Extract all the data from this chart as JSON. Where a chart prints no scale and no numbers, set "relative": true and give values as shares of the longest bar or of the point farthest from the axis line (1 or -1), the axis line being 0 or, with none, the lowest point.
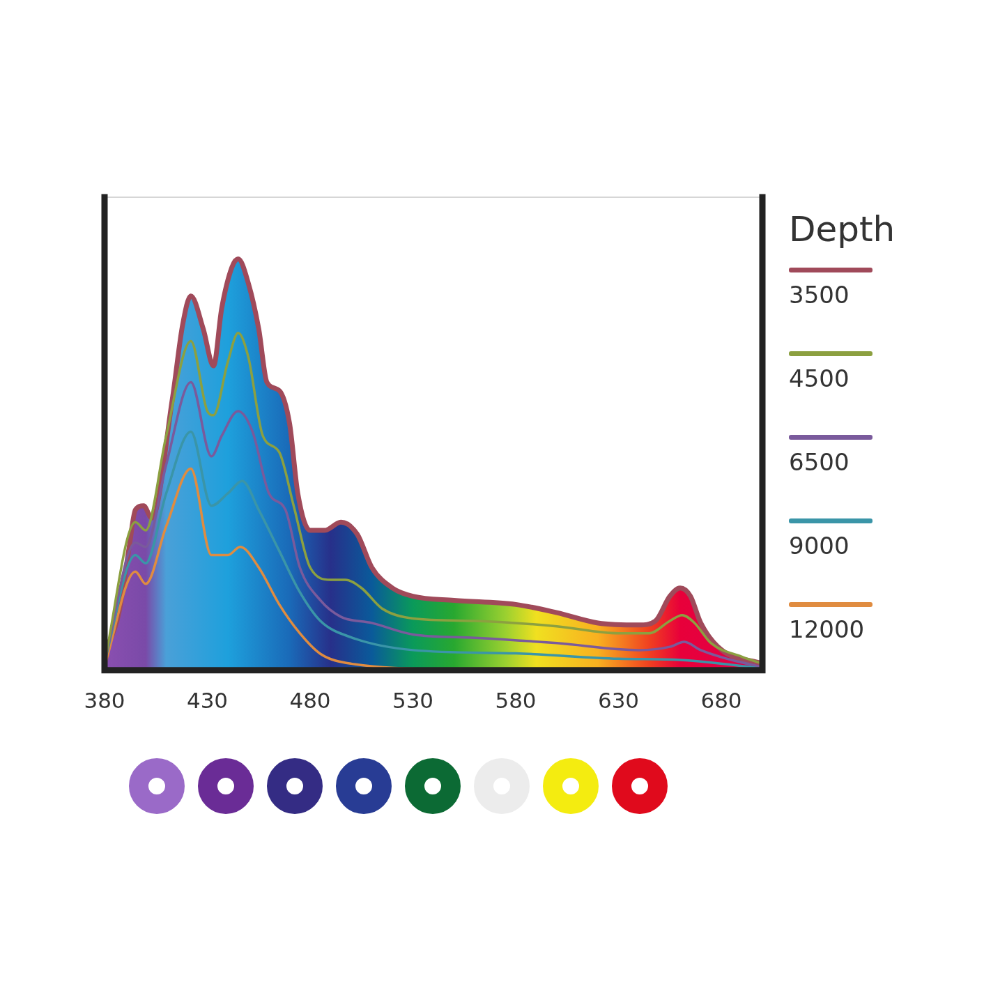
{
  "chart_data": {
    "type": "line",
    "relative": true,
    "legend_title": "Depth",
    "legend": "right",
    "tick_labels": "x",
    "grid": false,
    "marker": "none",
    "xlim": [
      380,
      700
    ],
    "xticks": [
      380,
      430,
      480,
      530,
      580,
      630,
      680
    ],
    "series": [
      {
        "name": "3500",
        "type": "area",
        "color": "#a04a5a",
        "x": [
          380,
          387,
          392,
          395,
          399,
          403,
          413,
          418,
          422,
          428,
          433,
          437,
          442,
          445,
          450,
          455,
          459,
          465,
          470,
          474,
          480,
          487,
          495,
          503,
          510,
          520,
          530,
          550,
          580,
          600,
          620,
          640,
          648,
          655,
          660,
          665,
          670,
          680,
          700
        ],
        "values": [
          0.04,
          0.14,
          0.3,
          0.39,
          0.4,
          0.37,
          0.66,
          0.84,
          0.91,
          0.83,
          0.74,
          0.88,
          0.98,
          1,
          0.94,
          0.83,
          0.7,
          0.68,
          0.6,
          0.43,
          0.34,
          0.34,
          0.36,
          0.33,
          0.25,
          0.2,
          0.18,
          0.17,
          0.16,
          0.14,
          0.115,
          0.11,
          0.12,
          0.18,
          0.2,
          0.18,
          0.115,
          0.05,
          0.016
        ]
      },
      {
        "name": "4500",
        "color": "#8ca040",
        "x": [
          380,
          395,
          400,
          410,
          422,
          430,
          433,
          440,
          445,
          450,
          457,
          465,
          472,
          480,
          490,
          497,
          505,
          515,
          530,
          560,
          600,
          630,
          645,
          655,
          661,
          667,
          675,
          690,
          700
        ],
        "values": [
          0.02,
          0.36,
          0.34,
          0.57,
          0.8,
          0.63,
          0.62,
          0.75,
          0.82,
          0.76,
          0.57,
          0.53,
          0.4,
          0.25,
          0.22,
          0.22,
          0.2,
          0.15,
          0.126,
          0.12,
          0.107,
          0.09,
          0.09,
          0.12,
          0.134,
          0.115,
          0.066,
          0.033,
          0.016
        ]
      },
      {
        "name": "6500",
        "color": "#7a5a9c",
        "x": [
          380,
          395,
          400,
          410,
          422,
          432,
          437,
          445,
          452,
          460,
          468,
          475,
          485,
          495,
          510,
          530,
          560,
          600,
          640,
          655,
          662,
          670,
          685,
          700
        ],
        "values": [
          0.02,
          0.31,
          0.3,
          0.5,
          0.7,
          0.52,
          0.57,
          0.63,
          0.58,
          0.43,
          0.39,
          0.25,
          0.17,
          0.13,
          0.115,
          0.087,
          0.079,
          0.066,
          0.049,
          0.057,
          0.069,
          0.049,
          0.025,
          0.008
        ]
      },
      {
        "name": "9000",
        "color": "#3a95a8",
        "x": [
          380,
          395,
          400,
          410,
          422,
          432,
          440,
          447,
          455,
          465,
          475,
          485,
          500,
          530,
          580,
          630,
          660,
          700
        ],
        "values": [
          0.02,
          0.28,
          0.26,
          0.43,
          0.58,
          0.4,
          0.43,
          0.46,
          0.39,
          0.29,
          0.19,
          0.12,
          0.08,
          0.049,
          0.041,
          0.028,
          0.025,
          0.005
        ]
      },
      {
        "name": "12000",
        "color": "#e08c40",
        "x": [
          380,
          395,
          400,
          410,
          422,
          432,
          440,
          446,
          455,
          465,
          475,
          485,
          500,
          560
        ],
        "values": [
          0.01,
          0.24,
          0.21,
          0.35,
          0.49,
          0.28,
          0.28,
          0.3,
          0.25,
          0.16,
          0.09,
          0.04,
          0.016,
          0
        ]
      }
    ]
  }
}
